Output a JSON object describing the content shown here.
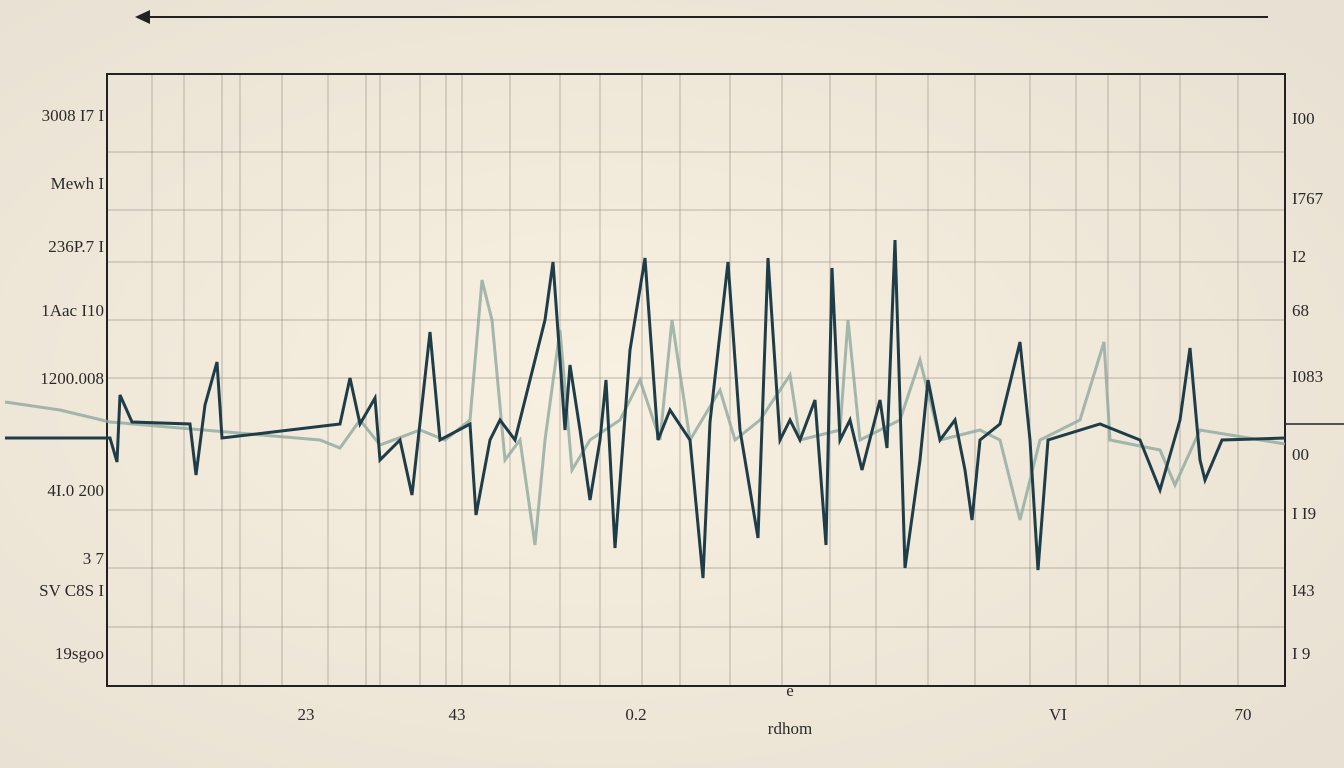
{
  "chart_data": {
    "type": "waveform",
    "left_labels": [
      "3008 I7 I",
      "Mewh I",
      "236P.7 I",
      "1Aac I10",
      "1200.008",
      "4I.0 200",
      "3 7",
      "SV C8S I",
      "19sgoo"
    ],
    "right_labels": [
      "I00",
      "I767",
      "I2",
      "68",
      "I083",
      "00",
      "I I9",
      "I43",
      "I 9"
    ],
    "x_labels": [
      "23",
      "43",
      "0.2",
      "e",
      "VI",
      "70"
    ],
    "x_axis_label": "rdhom"
  }
}
